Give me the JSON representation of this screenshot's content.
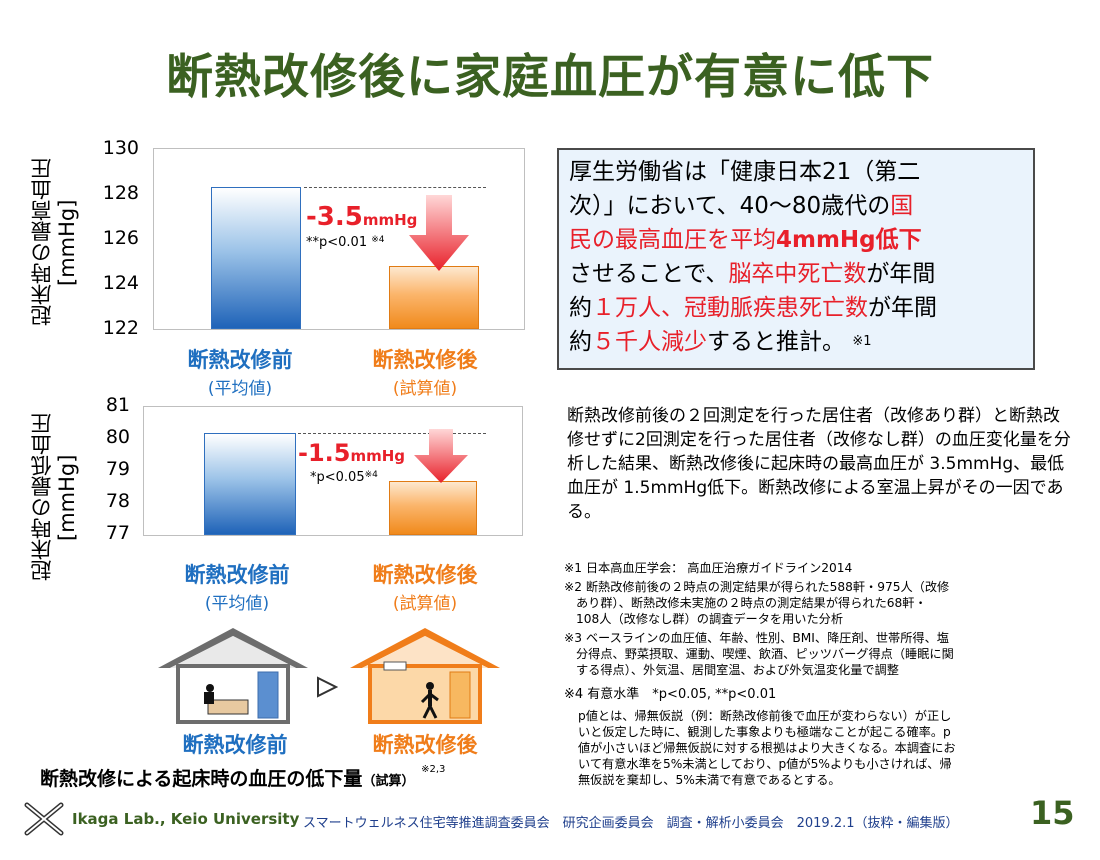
{
  "title": "断熱改修後に家庭血圧が有意に低下",
  "chart_data": [
    {
      "type": "bar",
      "ylabel": "起床時の最高血圧 [mmHg]",
      "ylim": [
        122,
        130
      ],
      "yticks": [
        122,
        124,
        126,
        128,
        130
      ],
      "categories": [
        "断熱改修前",
        "断熱改修後"
      ],
      "category_sub": [
        "(平均値)",
        "(試算値)"
      ],
      "values": [
        128.3,
        124.8
      ],
      "difference_label": "-3.5",
      "difference_unit": "mmHg",
      "p_label": "**p<0.01",
      "p_note_mark": "※4",
      "colors": [
        "#1f63b8",
        "#f08a1c"
      ]
    },
    {
      "type": "bar",
      "ylabel": "起床時の最低血圧 [mmHg]",
      "ylim": [
        77,
        81
      ],
      "yticks": [
        77,
        78,
        79,
        80,
        81
      ],
      "categories": [
        "断熱改修前",
        "断熱改修後"
      ],
      "category_sub": [
        "(平均値)",
        "(試算値)"
      ],
      "values": [
        80.2,
        78.7
      ],
      "difference_label": "-1.5",
      "difference_unit": "mmHg",
      "p_label": "*p<0.05",
      "p_note_mark": "※4",
      "colors": [
        "#1f63b8",
        "#f08a1c"
      ]
    }
  ],
  "info_box": {
    "line1": "厚生労働省は「健康日本21（第二",
    "line2": "次）」において、40～80歳代の",
    "line2_red": "国",
    "line3_red": "民の最高血圧を平均",
    "line3_red_bold": "4mmHg低下",
    "line4a": "させることで、",
    "line4_red": "脳卒中死亡数",
    "line4b": "が年間",
    "line5a": "約",
    "line5_red": "１万人、冠動脈疾患死亡数",
    "line5b": "が年間",
    "line6a": "約",
    "line6_red": "５千人減少",
    "line6b": "すると推計。",
    "line6_note": "※1"
  },
  "description": "断熱改修前後の２回測定を行った居住者（改修あり群）と断熱改修せずに2回測定を行った居住者（改修なし群）の血圧変化量を分析した結果、断熱改修後に起床時の最高血圧が 3.5mmHg、最低血圧が 1.5mmHg低下。断熱改修による室温上昇がその一因である。",
  "notes": {
    "n1": "※1 日本高血圧学会： 高血圧治療ガイドライン2014",
    "n2a": "※2 断熱改修前後の２時点の測定結果が得られた588軒・975人（改修",
    "n2b": "あり群）、断熱改修未実施の２時点の測定結果が得られた68軒・",
    "n2c": "108人（改修なし群）の調査データを用いた分析",
    "n3a": "※3 ベースラインの血圧値、年齢、性別、BMI、降圧剤、世帯所得、塩",
    "n3b": "分得点、野菜摂取、運動、喫煙、飲酒、ピッツバーグ得点（睡眠に関",
    "n3c": "する得点）、外気温、居間室温、および外気温変化量で調整",
    "n4": "※4  有意水準　*p<0.05, **p<0.01",
    "n4a": "p値とは、帰無仮説（例：断熱改修前後で血圧が変わらない）が正し",
    "n4b": "いと仮定した時に、観測した事象よりも極端なことが起こる確率。p",
    "n4c": "値が小さいほど帰無仮説に対する根拠はより大きくなる。本調査にお",
    "n4d": "いて有意水準を5%未満としており、p値が5%よりも小さければ、帰",
    "n4e": "無仮説を棄却し、5%未満で有意であるとする。"
  },
  "house_before_label": "断熱改修前",
  "house_after_label": "断熱改修後",
  "caption": "断熱改修による起床時の血圧の低下量",
  "caption_small": "（試算）",
  "caption_note": "※2,3",
  "footer": {
    "lab": "Ikaga Lab., Keio University",
    "committee": "スマートウェルネス住宅等推進調査委員会　研究企画委員会　調査・解析小委員会　2019.2.1（抜粋・編集版）",
    "page": "15"
  },
  "colors": {
    "title": "#3b6121",
    "red": "#e8202a",
    "blue": "#1f6fc0",
    "orange": "#f07d1a"
  }
}
